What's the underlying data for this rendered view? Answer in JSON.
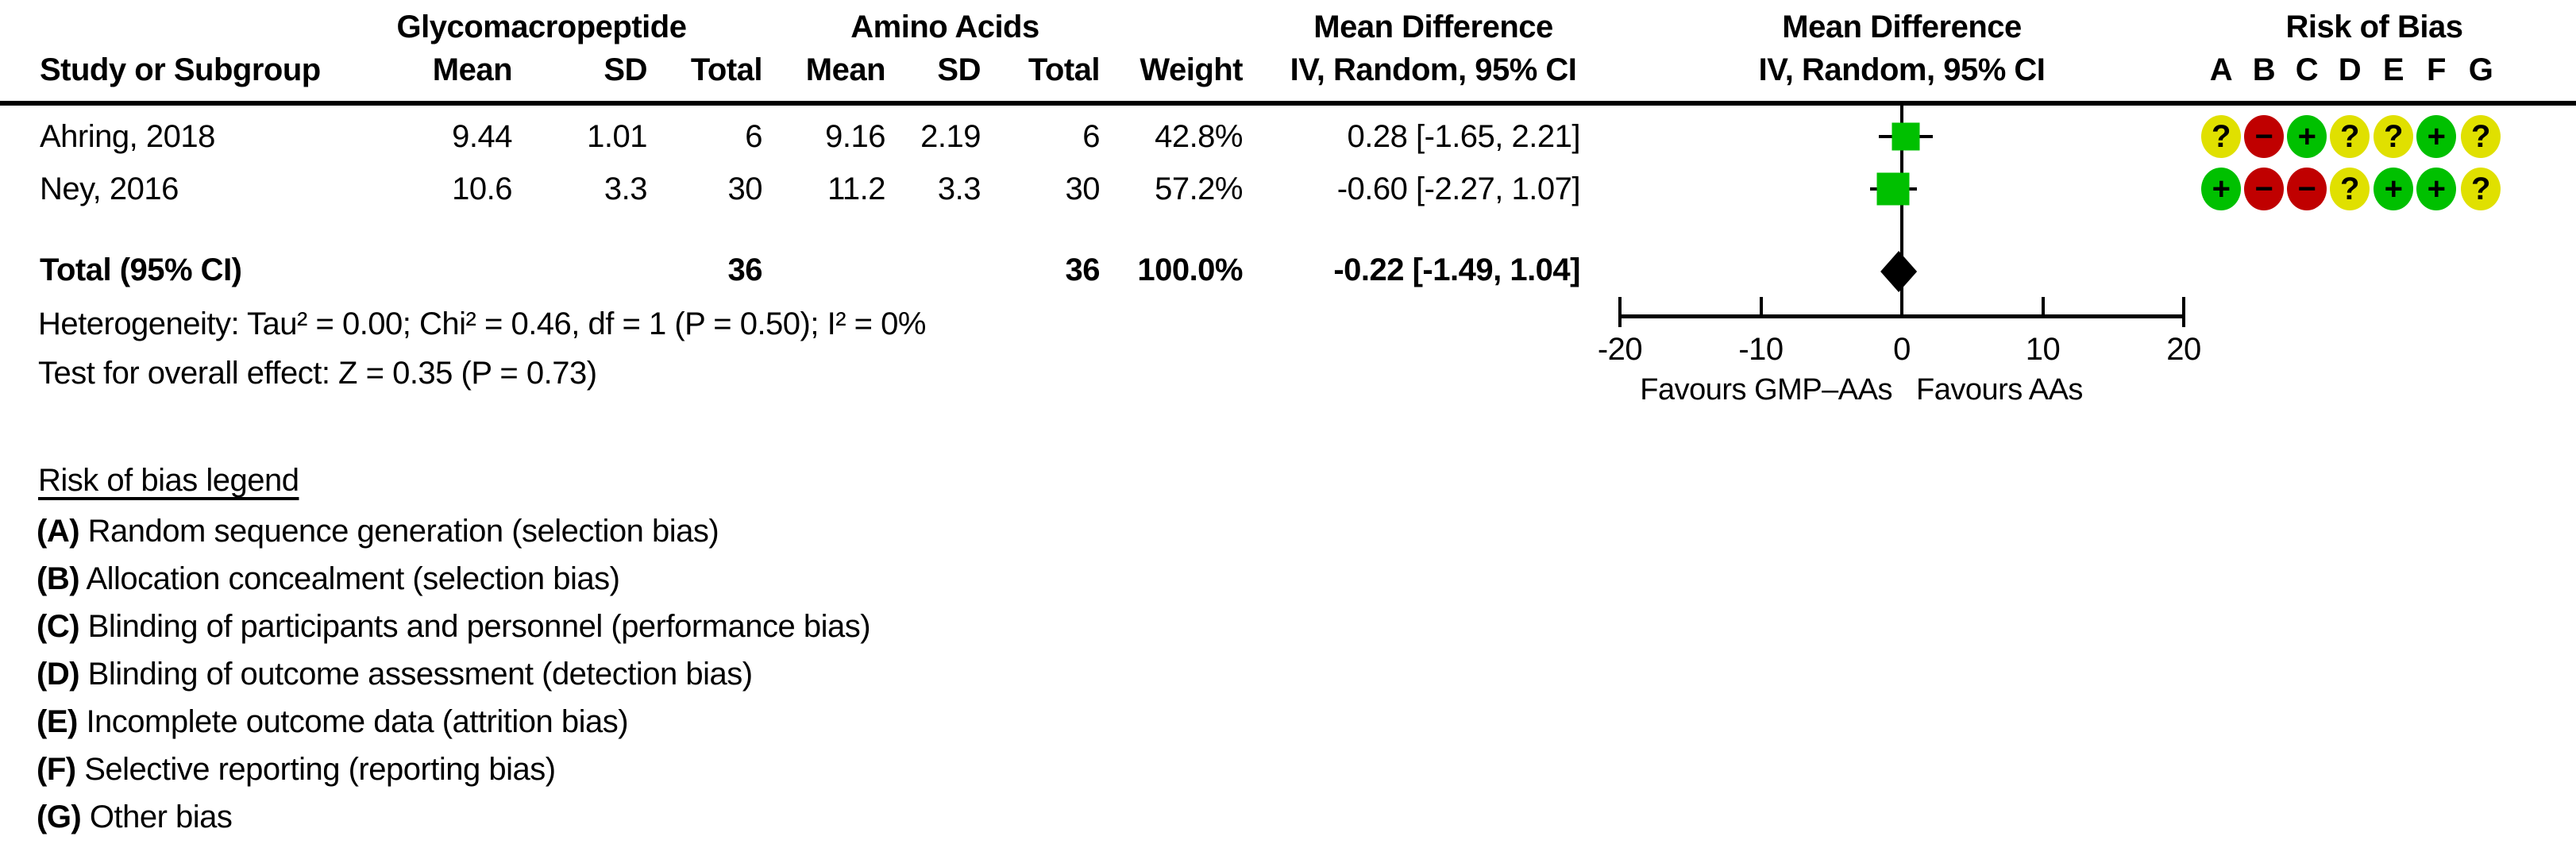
{
  "header": {
    "group1_label": "Glycomacropeptide",
    "group2_label": "Amino Acids",
    "md_text_label": "Mean Difference",
    "md_plot_label": "Mean Difference",
    "rob_label": "Risk of Bias",
    "study_col": "Study or Subgroup",
    "value_cols": [
      "Mean",
      "SD",
      "Total",
      "Mean",
      "SD",
      "Total",
      "Weight"
    ],
    "ci_col": "IV, Random, 95% CI",
    "ci_plot_col": "IV, Random, 95% CI",
    "rob_letters": [
      "A",
      "B",
      "C",
      "D",
      "E",
      "F",
      "G"
    ]
  },
  "studies": [
    {
      "name": "Ahring, 2018",
      "cells": [
        "9.44",
        "1.01",
        "6",
        "9.16",
        "2.19",
        "6",
        "42.8%"
      ],
      "ci_text": "0.28 [-1.65, 2.21]",
      "md": 0.28,
      "ci_low": -1.65,
      "ci_high": 2.21,
      "weight": 42.8,
      "rob": [
        "unclear",
        "high",
        "low",
        "unclear",
        "unclear",
        "low",
        "unclear"
      ]
    },
    {
      "name": "Ney, 2016",
      "cells": [
        "10.6",
        "3.3",
        "30",
        "11.2",
        "3.3",
        "30",
        "57.2%"
      ],
      "ci_text": "-0.60 [-2.27, 1.07]",
      "md": -0.6,
      "ci_low": -2.27,
      "ci_high": 1.07,
      "weight": 57.2,
      "rob": [
        "low",
        "high",
        "high",
        "unclear",
        "low",
        "low",
        "unclear"
      ]
    }
  ],
  "total": {
    "name": "Total (95% CI)",
    "total1": "36",
    "total2": "36",
    "weight": "100.0%",
    "ci_text": "-0.22 [-1.49, 1.04]",
    "md": -0.22,
    "ci_low": -1.49,
    "ci_high": 1.04
  },
  "stats": {
    "heterogeneity": "Heterogeneity: Tau² = 0.00; Chi² = 0.46, df = 1 (P = 0.50); I² = 0%",
    "overall_effect": "Test for overall effect: Z = 0.35 (P = 0.73)"
  },
  "axis": {
    "min": -20,
    "max": 20,
    "ticks": [
      -20,
      -10,
      0,
      10,
      20
    ],
    "tick_labels": [
      "-20",
      "-10",
      "0",
      "10",
      "20"
    ],
    "favours_left": "Favours GMP–AAs",
    "favours_right": "Favours AAs"
  },
  "rob_legend": {
    "title": "Risk of bias legend",
    "items": [
      {
        "key": "(A)",
        "text": "Random sequence generation (selection bias)"
      },
      {
        "key": "(B)",
        "text": "Allocation concealment (selection bias)"
      },
      {
        "key": "(C)",
        "text": "Blinding of participants and personnel (performance bias)"
      },
      {
        "key": "(D)",
        "text": "Blinding of outcome assessment (detection bias)"
      },
      {
        "key": "(E)",
        "text": "Incomplete outcome data (attrition bias)"
      },
      {
        "key": "(F)",
        "text": "Selective reporting (reporting bias)"
      },
      {
        "key": "(G)",
        "text": "Other bias"
      }
    ]
  },
  "colors": {
    "low": "#00C000",
    "high": "#C00000",
    "unclear": "#E0E000",
    "square": "#00C000",
    "diamond": "#000000"
  },
  "rob_symbols": {
    "low": "+",
    "high": "−",
    "unclear": "?"
  },
  "chart_data": {
    "type": "forest",
    "effect_measure": "Mean Difference, IV, Random, 95% CI",
    "group_labels": [
      "Glycomacropeptide",
      "Amino Acids"
    ],
    "studies": [
      {
        "label": "Ahring, 2018",
        "gmp": {
          "mean": 9.44,
          "sd": 1.01,
          "total": 6
        },
        "aa": {
          "mean": 9.16,
          "sd": 2.19,
          "total": 6
        },
        "weight_pct": 42.8,
        "md": 0.28,
        "ci95": [
          -1.65,
          2.21
        ]
      },
      {
        "label": "Ney, 2016",
        "gmp": {
          "mean": 10.6,
          "sd": 3.3,
          "total": 30
        },
        "aa": {
          "mean": 11.2,
          "sd": 3.3,
          "total": 30
        },
        "weight_pct": 57.2,
        "md": -0.6,
        "ci95": [
          -2.27,
          1.07
        ]
      }
    ],
    "total": {
      "label": "Total (95% CI)",
      "gmp_total": 36,
      "aa_total": 36,
      "weight_pct": 100.0,
      "md": -0.22,
      "ci95": [
        -1.49,
        1.04
      ]
    },
    "heterogeneity": {
      "tau2": 0.0,
      "chi2": 0.46,
      "df": 1,
      "p": 0.5,
      "i2_pct": 0
    },
    "overall_effect": {
      "z": 0.35,
      "p": 0.73
    },
    "xlim": [
      -20,
      20
    ],
    "xticks": [
      -20,
      -10,
      0,
      10,
      20
    ],
    "x_left_label": "Favours GMP–AAs",
    "x_right_label": "Favours AAs",
    "risk_of_bias": {
      "domains": [
        "A",
        "B",
        "C",
        "D",
        "E",
        "F",
        "G"
      ],
      "ratings": {
        "Ahring, 2018": [
          "unclear",
          "high",
          "low",
          "unclear",
          "unclear",
          "low",
          "unclear"
        ],
        "Ney, 2016": [
          "low",
          "high",
          "high",
          "unclear",
          "low",
          "low",
          "unclear"
        ]
      }
    }
  }
}
